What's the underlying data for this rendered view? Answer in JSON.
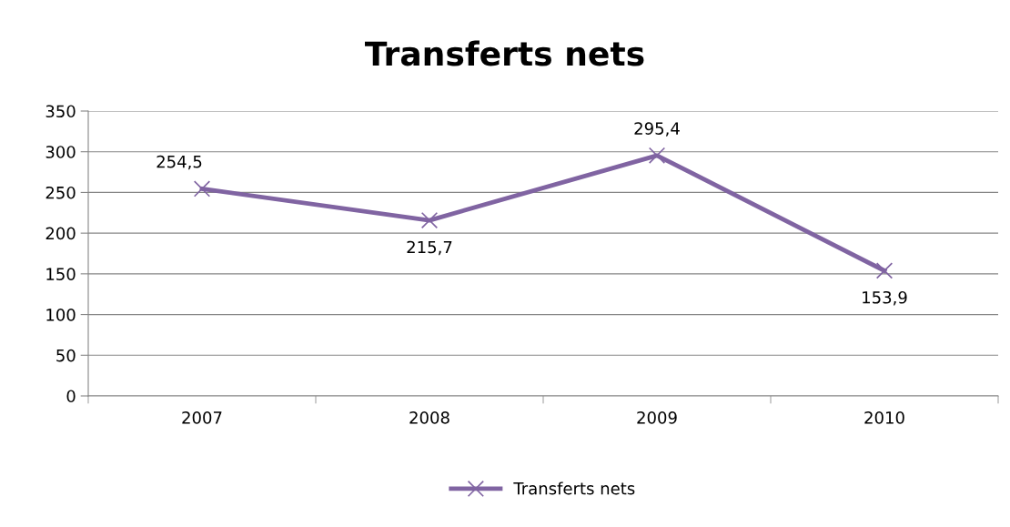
{
  "chart_data": {
    "type": "line",
    "title": "Transferts nets",
    "categories": [
      "2007",
      "2008",
      "2009",
      "2010"
    ],
    "series": [
      {
        "name": "Transferts nets",
        "color": "#8064a2",
        "values": [
          254.5,
          215.7,
          295.4,
          153.9
        ],
        "value_labels": [
          "254,5",
          "215,7",
          "295,4",
          "153,9"
        ]
      }
    ],
    "ylim": [
      0,
      350
    ],
    "yticks": [
      0,
      50,
      100,
      150,
      200,
      250,
      300,
      350
    ],
    "grid": "y",
    "legend": "bottom",
    "marker": "cross",
    "line_style": "solid"
  }
}
